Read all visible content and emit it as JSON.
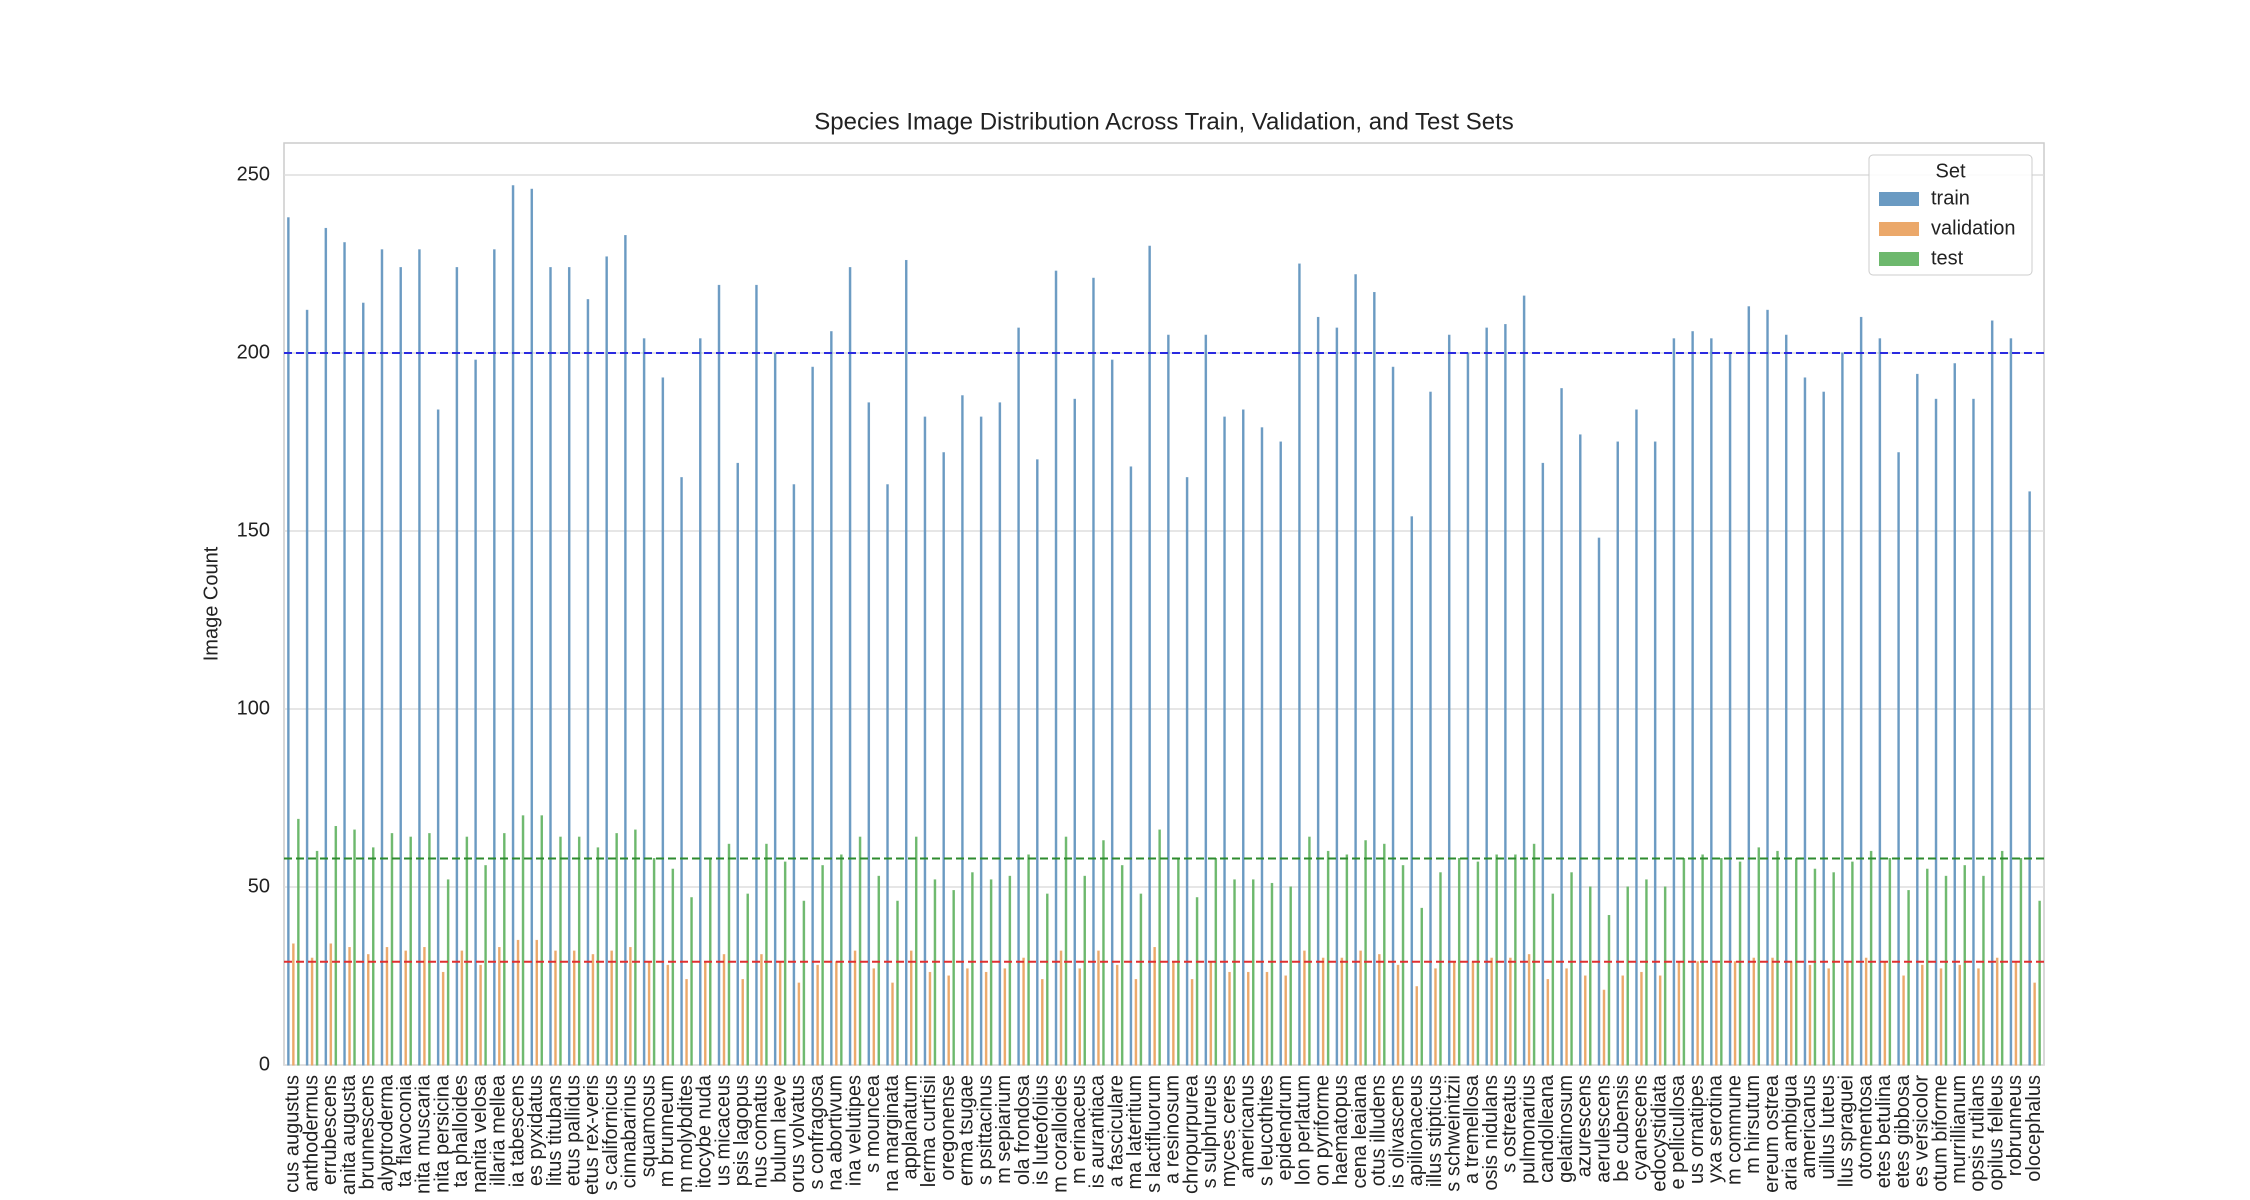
{
  "chart_data": {
    "type": "bar",
    "title": "Species Image Distribution Across Train, Validation, and Test Sets",
    "y_label": "Image Count",
    "legend_title": "Set",
    "legend_position": "upper right",
    "grid": true,
    "ylim": [
      0,
      259
    ],
    "yticks": [
      0,
      50,
      100,
      150,
      200,
      250
    ],
    "categories": [
      "cus augustus",
      "anthodermus",
      "errubescens",
      "anita augusta",
      "brunnescens",
      "alyptroderma",
      "ta flavoconia",
      "nita muscaria",
      "nita persicina",
      "ta phalloides",
      "nanita velosa",
      "illaria mellea",
      "ia tabescens",
      "es pyxidatus",
      "litus titubans",
      "etus pallidus",
      "etus rex-veris",
      "s californicus",
      "cinnabarinus",
      "squamosus",
      "m brunneum",
      "m molybdites",
      "itocybe nuda",
      "us micaceus",
      "psis lagopus",
      "nus comatus",
      "bulum laeve",
      "orus volvatus",
      "s confragosa",
      "na abortivum",
      "ina velutipes",
      "s mouncea",
      "na marginata",
      "applanatum",
      "lerma curtisii",
      "oregonense",
      "erma tsugae",
      "s psittacinus",
      "m sepiarium",
      "ola frondosa",
      "is luteofolius",
      "m coralloides",
      "m erinaceus",
      "is aurantiaca",
      "a fasciculare",
      "ma lateritium",
      "s lactifluorum",
      "a resinosum",
      "chropurpurea",
      "s sulphureus",
      "myces ceres",
      "americanus",
      "s leucothites",
      "epidendrum",
      "lon perlatum",
      "on pyriforme",
      "haematopus",
      "cena leaiana",
      "otus illudens",
      "is olivascens",
      "apilionaceus",
      "illus stipticus",
      "s schweinitzii",
      "a tremellosa",
      "osis nidulans",
      "s ostreatus",
      "pulmonarius",
      "candolleana",
      "gelatinosum",
      "azurescens",
      "aerulescens",
      "be cubensis",
      "cyanescens",
      "edocystidiata",
      "e pellicullosa",
      "us ornatipes",
      "yxa serotina",
      "m commune",
      "m hirsutum",
      "ereum ostrea",
      "aria ambigua",
      "americanus",
      "uillus luteus",
      "llus spraguei",
      "otomentosa",
      "etes betulina",
      "etes gibbosa",
      "es versicolor",
      "otum biforme",
      "murrillianum",
      "opsis rutilans",
      "opilus felleus",
      "robrunneus",
      "olocephalus"
    ],
    "series": [
      {
        "name": "train",
        "color": "#6a9ac2",
        "values": [
          238,
          212,
          235,
          231,
          214,
          229,
          224,
          229,
          184,
          224,
          198,
          229,
          247,
          246,
          224,
          224,
          215,
          227,
          233,
          204,
          193,
          165,
          204,
          219,
          169,
          219,
          200,
          163,
          196,
          206,
          224,
          186,
          163,
          226,
          182,
          172,
          188,
          182,
          186,
          207,
          170,
          223,
          187,
          221,
          198,
          168,
          230,
          205,
          165,
          205,
          182,
          184,
          179,
          175,
          225,
          210,
          207,
          222,
          217,
          196,
          154,
          189,
          205,
          200,
          207,
          208,
          216,
          169,
          190,
          177,
          148,
          175,
          184,
          175,
          204,
          206,
          204,
          200,
          213,
          212,
          205,
          193,
          189,
          200,
          210,
          204,
          172,
          194,
          187,
          197,
          187,
          209,
          204,
          161
        ]
      },
      {
        "name": "validation",
        "color": "#eba86a",
        "values": [
          34,
          30,
          34,
          33,
          31,
          33,
          32,
          33,
          26,
          32,
          28,
          33,
          35,
          35,
          32,
          32,
          31,
          32,
          33,
          29,
          28,
          24,
          29,
          31,
          24,
          31,
          29,
          23,
          28,
          29,
          32,
          27,
          23,
          32,
          26,
          25,
          27,
          26,
          27,
          30,
          24,
          32,
          27,
          32,
          28,
          24,
          33,
          29,
          24,
          29,
          26,
          26,
          26,
          25,
          32,
          30,
          30,
          32,
          31,
          28,
          22,
          27,
          29,
          29,
          30,
          30,
          31,
          24,
          27,
          25,
          21,
          25,
          26,
          25,
          29,
          29,
          29,
          29,
          30,
          30,
          29,
          28,
          27,
          29,
          30,
          29,
          25,
          28,
          27,
          28,
          27,
          30,
          29,
          23
        ]
      },
      {
        "name": "test",
        "color": "#6db86d",
        "values": [
          69,
          60,
          67,
          66,
          61,
          65,
          64,
          65,
          52,
          64,
          56,
          65,
          70,
          70,
          64,
          64,
          61,
          65,
          66,
          58,
          55,
          47,
          58,
          62,
          48,
          62,
          57,
          46,
          56,
          59,
          64,
          53,
          46,
          64,
          52,
          49,
          54,
          52,
          53,
          59,
          48,
          64,
          53,
          63,
          56,
          48,
          66,
          58,
          47,
          58,
          52,
          52,
          51,
          50,
          64,
          60,
          59,
          63,
          62,
          56,
          44,
          54,
          58,
          57,
          59,
          59,
          62,
          48,
          54,
          50,
          42,
          50,
          52,
          50,
          58,
          59,
          58,
          57,
          61,
          60,
          58,
          55,
          54,
          57,
          60,
          58,
          49,
          55,
          53,
          56,
          53,
          60,
          58,
          46
        ]
      }
    ],
    "reference_lines": [
      {
        "value": 200,
        "color": "#2a2ae0"
      },
      {
        "value": 58,
        "color": "#2e8b2e"
      },
      {
        "value": 29,
        "color": "#e03030"
      }
    ]
  }
}
